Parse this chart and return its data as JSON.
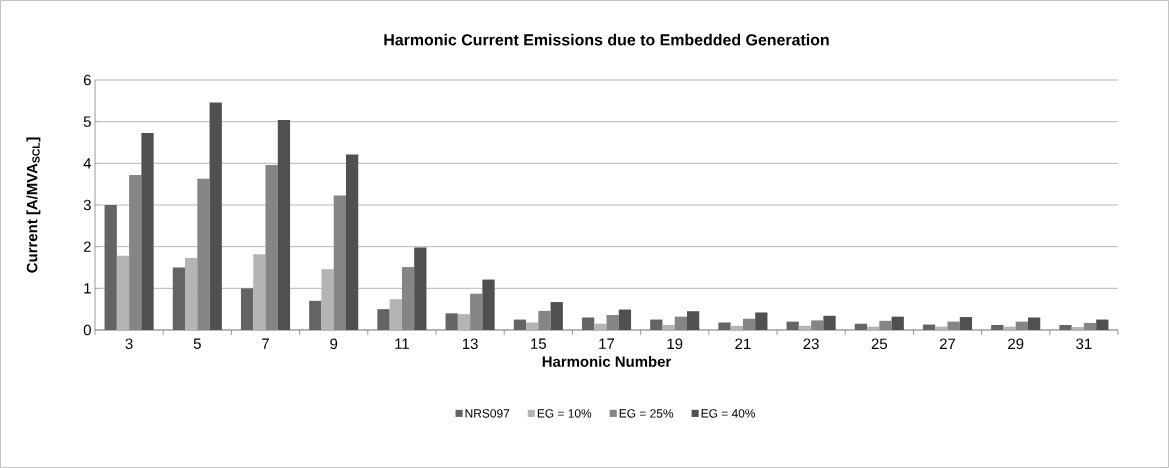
{
  "chart_data": {
    "type": "bar",
    "title": "Harmonic Current Emissions due to Embedded Generation",
    "xlabel": "Harmonic Number",
    "ylabel": "Current [A/MVA$_{SCL}$]",
    "categories": [
      "3",
      "5",
      "7",
      "9",
      "11",
      "13",
      "15",
      "17",
      "19",
      "21",
      "23",
      "25",
      "27",
      "29",
      "31"
    ],
    "series": [
      {
        "name": "NRS097",
        "color": "#646464",
        "values": [
          3.0,
          1.5,
          1.0,
          0.7,
          0.5,
          0.4,
          0.25,
          0.3,
          0.25,
          0.18,
          0.2,
          0.15,
          0.13,
          0.12,
          0.12
        ]
      },
      {
        "name": "EG = 10%",
        "color": "#b4b4b4",
        "values": [
          1.78,
          1.73,
          1.82,
          1.46,
          0.74,
          0.38,
          0.18,
          0.15,
          0.12,
          0.1,
          0.1,
          0.08,
          0.08,
          0.08,
          0.07
        ]
      },
      {
        "name": "EG = 25%",
        "color": "#858585",
        "values": [
          3.72,
          3.63,
          3.96,
          3.23,
          1.51,
          0.87,
          0.46,
          0.36,
          0.32,
          0.27,
          0.23,
          0.22,
          0.2,
          0.2,
          0.17
        ]
      },
      {
        "name": "EG = 40%",
        "color": "#505050",
        "values": [
          4.73,
          5.46,
          5.04,
          4.21,
          1.98,
          1.21,
          0.67,
          0.49,
          0.45,
          0.42,
          0.34,
          0.32,
          0.31,
          0.3,
          0.25
        ]
      }
    ],
    "ylim": [
      0,
      6
    ],
    "yticks": [
      0,
      1,
      2,
      3,
      4,
      5,
      6
    ],
    "grid": "y",
    "legend": "bottom"
  }
}
